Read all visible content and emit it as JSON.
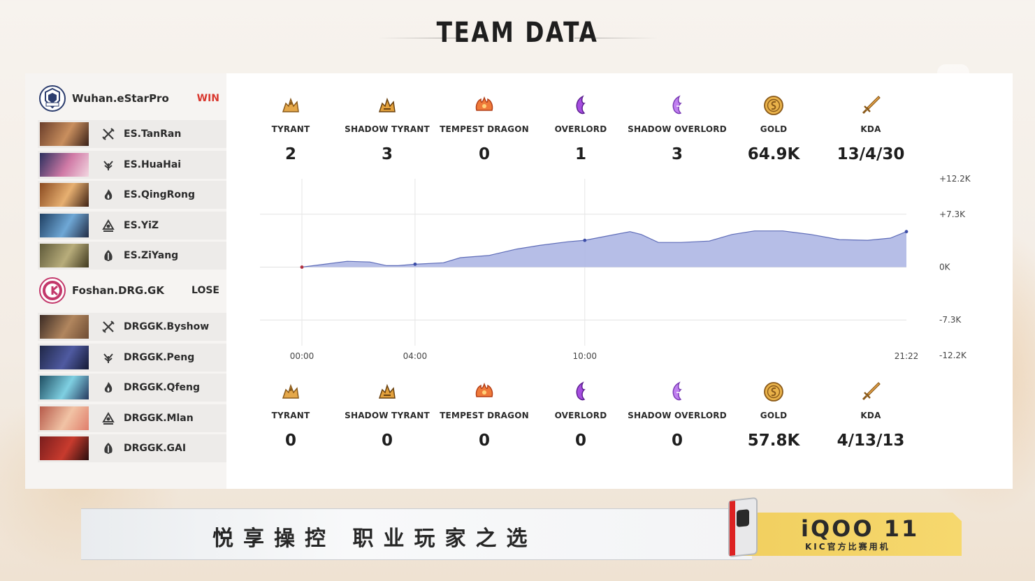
{
  "header": {
    "title": "TEAM DATA"
  },
  "team_a": {
    "name": "Wuhan.eStarPro",
    "result": "WIN",
    "result_color": "#d9382f",
    "players": [
      {
        "name": "ES.TanRan",
        "role_icon": "crossed-swords-icon"
      },
      {
        "name": "ES.HuaHai",
        "role_icon": "claw-icon"
      },
      {
        "name": "ES.QingRong",
        "role_icon": "flame-icon"
      },
      {
        "name": "ES.YiZ",
        "role_icon": "archer-icon"
      },
      {
        "name": "ES.ZiYang",
        "role_icon": "wing-icon"
      }
    ],
    "stats": [
      {
        "label": "TYRANT",
        "value": "2",
        "icon": "tyrant-icon"
      },
      {
        "label": "SHADOW TYRANT",
        "value": "3",
        "icon": "shadow-tyrant-icon"
      },
      {
        "label": "TEMPEST DRAGON",
        "value": "0",
        "icon": "tempest-dragon-icon"
      },
      {
        "label": "OVERLORD",
        "value": "1",
        "icon": "overlord-icon"
      },
      {
        "label": "SHADOW OVERLORD",
        "value": "3",
        "icon": "shadow-overlord-icon"
      },
      {
        "label": "GOLD",
        "value": "64.9K",
        "icon": "gold-icon"
      },
      {
        "label": "KDA",
        "value": "13/4/30",
        "icon": "kda-sword-icon"
      }
    ]
  },
  "team_b": {
    "name": "Foshan.DRG.GK",
    "result": "LOSE",
    "result_color": "#2b2b2b",
    "players": [
      {
        "name": "DRGGK.Byshow",
        "role_icon": "crossed-swords-icon"
      },
      {
        "name": "DRGGK.Peng",
        "role_icon": "claw-icon"
      },
      {
        "name": "DRGGK.Qfeng",
        "role_icon": "flame-icon"
      },
      {
        "name": "DRGGK.Mlan",
        "role_icon": "archer-icon"
      },
      {
        "name": "DRGGK.GAI",
        "role_icon": "wing-icon"
      }
    ],
    "stats": [
      {
        "label": "TYRANT",
        "value": "0",
        "icon": "tyrant-icon"
      },
      {
        "label": "SHADOW TYRANT",
        "value": "0",
        "icon": "shadow-tyrant-icon"
      },
      {
        "label": "TEMPEST DRAGON",
        "value": "0",
        "icon": "tempest-dragon-icon"
      },
      {
        "label": "OVERLORD",
        "value": "0",
        "icon": "overlord-icon"
      },
      {
        "label": "SHADOW OVERLORD",
        "value": "0",
        "icon": "shadow-overlord-icon"
      },
      {
        "label": "GOLD",
        "value": "57.8K",
        "icon": "gold-icon"
      },
      {
        "label": "KDA",
        "value": "4/13/13",
        "icon": "kda-sword-icon"
      }
    ]
  },
  "chart_data": {
    "type": "area",
    "x_ticks": [
      "00:00",
      "04:00",
      "10:00",
      "21:22"
    ],
    "x_tick_minutes": [
      0,
      4,
      10,
      21.37
    ],
    "y_ticks": [
      "+12.2K",
      "+7.3K",
      "0K",
      "-7.3K",
      "-12.2K"
    ],
    "y_tick_values": [
      12.2,
      7.3,
      0,
      -7.3,
      -12.2
    ],
    "ylim": [
      -12.2,
      12.2
    ],
    "xlim": [
      0,
      21.37
    ],
    "series": [
      {
        "x": [
          0,
          0.8,
          1.6,
          2.4,
          3.0,
          3.4,
          4.0,
          5.0,
          5.6,
          6.6,
          7.6,
          8.4,
          9.4,
          10.0,
          10.8,
          11.6,
          12.0,
          12.6,
          13.4,
          14.4,
          15.2,
          16.0,
          17.0,
          18.0,
          19.0,
          20.0,
          20.8,
          21.37
        ],
        "y": [
          0,
          0.4,
          0.8,
          0.7,
          0.2,
          0.2,
          0.4,
          0.6,
          1.3,
          1.6,
          2.5,
          3.0,
          3.5,
          3.7,
          4.3,
          4.9,
          4.5,
          3.4,
          3.4,
          3.6,
          4.5,
          5.0,
          5.0,
          4.5,
          3.8,
          3.7,
          4.0,
          4.9
        ]
      }
    ],
    "markers_minutes": [
      0,
      4,
      10,
      21.37
    ],
    "fill_color": "#a9b3e3",
    "line_color": "#5e6cb8"
  },
  "banner": {
    "slogan": "悦享操控  职业玩家之选",
    "brand": "iQOO 11",
    "brand_sub": "KIC官方比赛用机"
  }
}
